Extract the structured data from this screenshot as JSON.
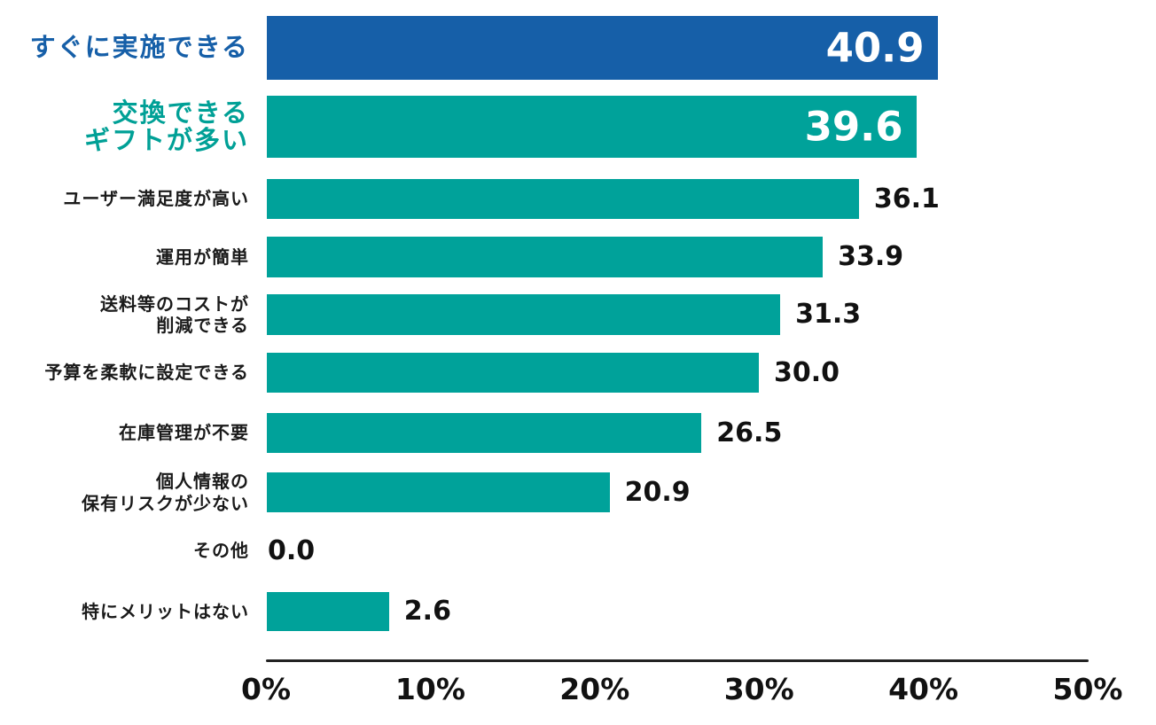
{
  "chart_data": {
    "type": "bar",
    "orientation": "horizontal",
    "title": "",
    "xlabel": "",
    "ylabel": "",
    "xlim": [
      0,
      50
    ],
    "grid": false,
    "legend": false,
    "x_ticks": [
      "0%",
      "10%",
      "20%",
      "30%",
      "40%",
      "50%"
    ],
    "colors": {
      "highlight_blue": "#165FA8",
      "teal": "#00A29A",
      "teal_text": "#00A096",
      "label_black": "#1a1a1a",
      "value_inside": "#ffffff",
      "value_outside": "#111111",
      "axis": "#222222",
      "background": "#ffffff"
    },
    "rows": [
      {
        "lines": [
          "すぐに実施できる"
        ],
        "value": 40.9,
        "value_label": "40.9",
        "bar_color": "#165FA8",
        "label_color": "#165FA8",
        "emphasis": true,
        "value_position": "inside"
      },
      {
        "lines": [
          "交換できる",
          "ギフトが多い"
        ],
        "value": 39.6,
        "value_label": "39.6",
        "bar_color": "#00A29A",
        "label_color": "#00A096",
        "emphasis": true,
        "value_position": "inside"
      },
      {
        "lines": [
          "ユーザー満足度が高い"
        ],
        "value": 36.1,
        "value_label": "36.1",
        "bar_color": "#00A29A",
        "label_color": "#1a1a1a",
        "emphasis": false,
        "value_position": "outside"
      },
      {
        "lines": [
          "運用が簡単"
        ],
        "value": 33.9,
        "value_label": "33.9",
        "bar_color": "#00A29A",
        "label_color": "#1a1a1a",
        "emphasis": false,
        "value_position": "outside"
      },
      {
        "lines": [
          "送料等のコストが",
          "削減できる"
        ],
        "value": 31.3,
        "value_label": "31.3",
        "bar_color": "#00A29A",
        "label_color": "#1a1a1a",
        "emphasis": false,
        "value_position": "outside"
      },
      {
        "lines": [
          "予算を柔軟に設定できる"
        ],
        "value": 30.0,
        "value_label": "30.0",
        "bar_color": "#00A29A",
        "label_color": "#1a1a1a",
        "emphasis": false,
        "value_position": "outside"
      },
      {
        "lines": [
          "在庫管理が不要"
        ],
        "value": 26.5,
        "value_label": "26.5",
        "bar_color": "#00A29A",
        "label_color": "#1a1a1a",
        "emphasis": false,
        "value_position": "outside"
      },
      {
        "lines": [
          "個人情報の",
          "保有リスクが少ない"
        ],
        "value": 20.9,
        "value_label": "20.9",
        "bar_color": "#00A29A",
        "label_color": "#1a1a1a",
        "emphasis": false,
        "value_position": "outside"
      },
      {
        "lines": [
          "その他"
        ],
        "value": 0.0,
        "value_label": "0.0",
        "bar_color": "#00A29A",
        "label_color": "#1a1a1a",
        "emphasis": false,
        "value_position": "outside"
      },
      {
        "lines": [
          "特にメリットはない"
        ],
        "value": 2.6,
        "value_label": "2.6",
        "display_pct": 7.45,
        "bar_color": "#00A29A",
        "label_color": "#1a1a1a",
        "emphasis": false,
        "value_position": "outside"
      }
    ]
  }
}
